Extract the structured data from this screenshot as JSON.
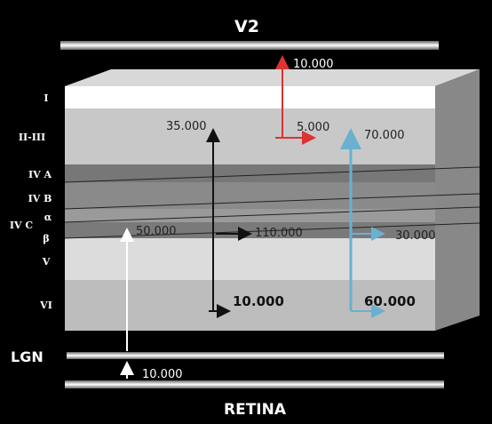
{
  "top_label": "V2",
  "bottom_label": "RETINA",
  "input_label": "LGN",
  "layers": [
    {
      "label": "I"
    },
    {
      "label": "II-III"
    },
    {
      "label": "IV A"
    },
    {
      "label": "IV B"
    },
    {
      "label": "IV C"
    },
    {
      "label": "α"
    },
    {
      "label": "β"
    },
    {
      "label": "V"
    },
    {
      "label": "VI"
    }
  ],
  "flows": [
    {
      "label": "10.000"
    },
    {
      "label": "35.000"
    },
    {
      "label": "5.000"
    },
    {
      "label": "70.000"
    },
    {
      "label": "50.000"
    },
    {
      "label": "110.000"
    },
    {
      "label": "30.000"
    },
    {
      "label": "10.000"
    },
    {
      "label": "60.000"
    },
    {
      "label": "10.000"
    }
  ]
}
